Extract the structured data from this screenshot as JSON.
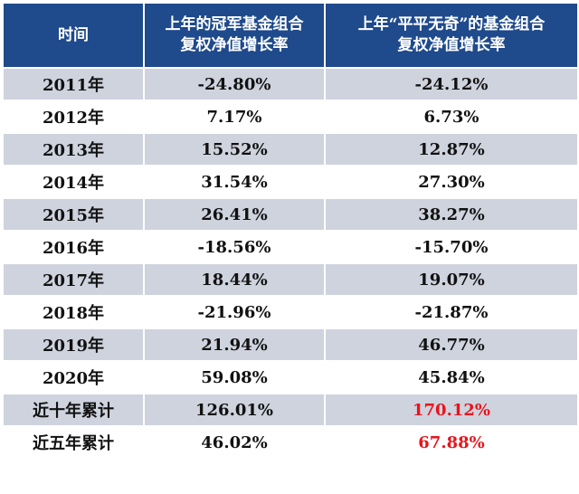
{
  "table": {
    "headers": [
      "时间",
      "上年的冠军基金组合复权净值增长率",
      "上年“平平无奇”的基金组合复权净值增长率"
    ],
    "header_lines": [
      [
        "时间"
      ],
      [
        "上年的冠军基金组合",
        "复权净值增长率"
      ],
      [
        "上年“平平无奇”的基金组合",
        "复权净值增长率"
      ]
    ],
    "rows": [
      {
        "period": "2011年",
        "champion": "-24.80%",
        "ordinary": "-24.12%"
      },
      {
        "period": "2012年",
        "champion": "7.17%",
        "ordinary": "6.73%"
      },
      {
        "period": "2013年",
        "champion": "15.52%",
        "ordinary": "12.87%"
      },
      {
        "period": "2014年",
        "champion": "31.54%",
        "ordinary": "27.30%"
      },
      {
        "period": "2015年",
        "champion": "26.41%",
        "ordinary": "38.27%"
      },
      {
        "period": "2016年",
        "champion": "-18.56%",
        "ordinary": "-15.70%"
      },
      {
        "period": "2017年",
        "champion": "18.44%",
        "ordinary": "19.07%"
      },
      {
        "period": "2018年",
        "champion": "-21.96%",
        "ordinary": "-21.87%"
      },
      {
        "period": "2019年",
        "champion": "21.94%",
        "ordinary": "46.77%"
      },
      {
        "period": "2020年",
        "champion": "59.08%",
        "ordinary": "45.84%"
      },
      {
        "period": "近十年累计",
        "champion": "126.01%",
        "ordinary": "170.12%"
      },
      {
        "period": "近五年累计",
        "champion": "46.02%",
        "ordinary": "67.88%"
      }
    ]
  },
  "colors": {
    "header_background": "#1f4a8c",
    "header_text": "#ffffff",
    "stripe_background": "#cfd3de",
    "highlight_text": "#e8141b"
  }
}
